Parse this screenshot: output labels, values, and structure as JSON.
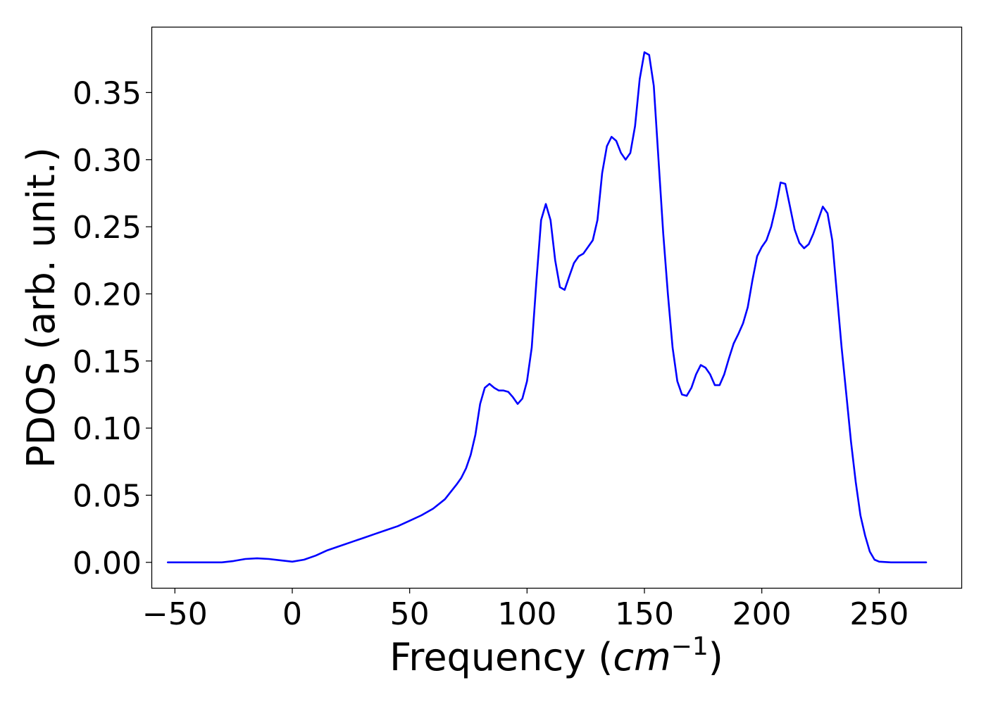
{
  "chart_data": {
    "type": "line",
    "title": "",
    "xlabel": {
      "prefix": "Frequency (",
      "unit_base": "cm",
      "unit_exponent": "−1",
      "suffix": ")"
    },
    "ylabel": "PDOS (arb. unit.)",
    "xlim": [
      -60,
      285
    ],
    "ylim": [
      -0.019,
      0.399
    ],
    "x_ticks": [
      -50,
      0,
      50,
      100,
      150,
      200,
      250
    ],
    "x_tick_labels": [
      "−50",
      "0",
      "50",
      "100",
      "150",
      "200",
      "250"
    ],
    "y_ticks": [
      0.0,
      0.05,
      0.1,
      0.15,
      0.2,
      0.25,
      0.3,
      0.35
    ],
    "y_tick_labels": [
      "0.00",
      "0.05",
      "0.10",
      "0.15",
      "0.20",
      "0.25",
      "0.30",
      "0.35"
    ],
    "grid": false,
    "legend": "none",
    "series": [
      {
        "color": "#0000ff",
        "x": [
          -53,
          -30,
          -25,
          -20,
          -15,
          -10,
          -5,
          0,
          5,
          10,
          15,
          20,
          25,
          30,
          35,
          40,
          45,
          50,
          55,
          60,
          65,
          70,
          72,
          74,
          76,
          78,
          80,
          82,
          84,
          86,
          88,
          90,
          92,
          94,
          96,
          98,
          100,
          102,
          104,
          106,
          108,
          110,
          112,
          114,
          116,
          118,
          120,
          122,
          124,
          126,
          128,
          130,
          132,
          134,
          136,
          138,
          140,
          142,
          144,
          146,
          148,
          150,
          152,
          154,
          156,
          158,
          160,
          162,
          164,
          166,
          168,
          170,
          172,
          174,
          176,
          178,
          180,
          182,
          184,
          186,
          188,
          190,
          192,
          194,
          196,
          198,
          200,
          202,
          204,
          206,
          208,
          210,
          212,
          214,
          216,
          218,
          220,
          222,
          224,
          226,
          228,
          230,
          232,
          234,
          236,
          238,
          240,
          242,
          244,
          246,
          248,
          250,
          255,
          260,
          270
        ],
        "y": [
          0.0,
          0.0,
          0.001,
          0.0025,
          0.003,
          0.0025,
          0.0015,
          0.0005,
          0.002,
          0.005,
          0.009,
          0.012,
          0.015,
          0.018,
          0.021,
          0.024,
          0.027,
          0.031,
          0.035,
          0.04,
          0.047,
          0.058,
          0.063,
          0.07,
          0.08,
          0.095,
          0.118,
          0.13,
          0.133,
          0.13,
          0.128,
          0.128,
          0.127,
          0.123,
          0.118,
          0.122,
          0.135,
          0.16,
          0.21,
          0.255,
          0.267,
          0.255,
          0.225,
          0.205,
          0.203,
          0.213,
          0.223,
          0.228,
          0.23,
          0.235,
          0.24,
          0.255,
          0.29,
          0.31,
          0.317,
          0.314,
          0.305,
          0.3,
          0.305,
          0.325,
          0.36,
          0.38,
          0.378,
          0.355,
          0.3,
          0.245,
          0.2,
          0.16,
          0.135,
          0.125,
          0.124,
          0.13,
          0.14,
          0.147,
          0.145,
          0.14,
          0.132,
          0.132,
          0.14,
          0.152,
          0.163,
          0.17,
          0.178,
          0.19,
          0.21,
          0.228,
          0.235,
          0.24,
          0.25,
          0.265,
          0.283,
          0.282,
          0.265,
          0.248,
          0.238,
          0.234,
          0.237,
          0.245,
          0.255,
          0.265,
          0.26,
          0.24,
          0.2,
          0.16,
          0.125,
          0.09,
          0.06,
          0.035,
          0.02,
          0.008,
          0.002,
          0.0005,
          0.0,
          0.0,
          0.0
        ]
      }
    ]
  }
}
